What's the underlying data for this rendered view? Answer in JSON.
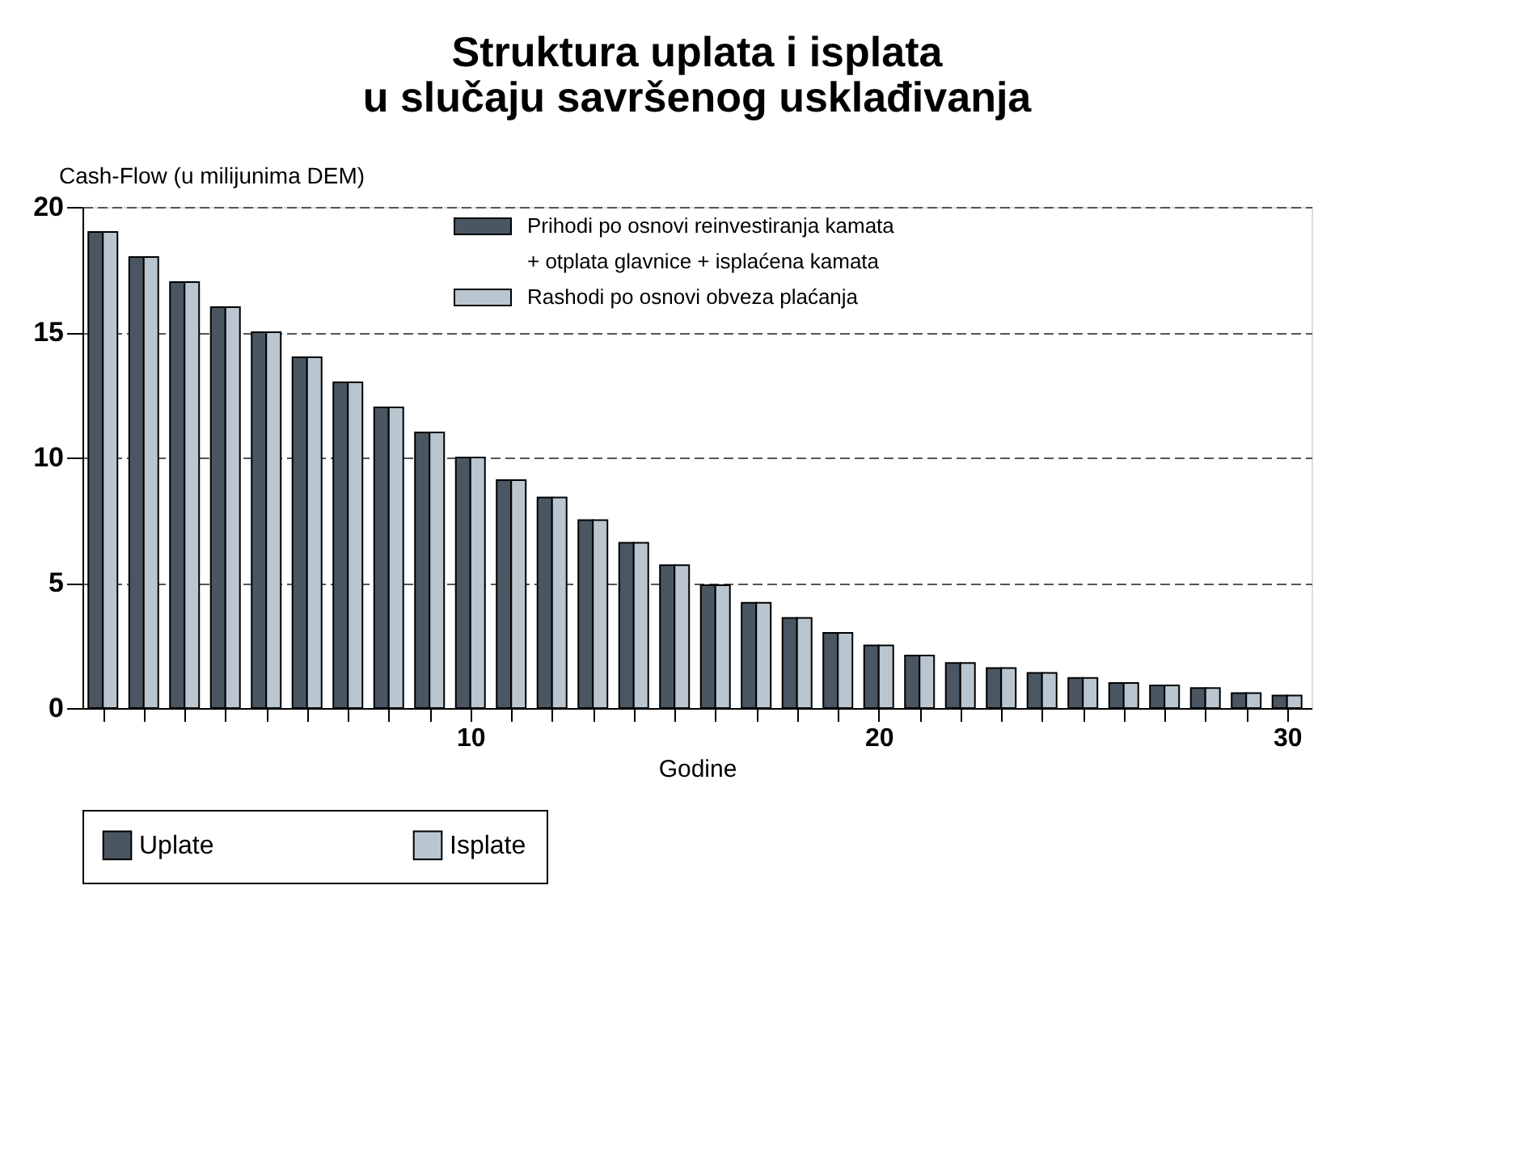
{
  "chart_data": {
    "type": "bar",
    "title": "Struktura uplata i isplata\nu slučaju savršenog usklađivanja",
    "xlabel": "Godine",
    "ylabel": "Cash-Flow (u milijunima DEM)",
    "x": [
      1,
      2,
      3,
      4,
      5,
      6,
      7,
      8,
      9,
      10,
      11,
      12,
      13,
      14,
      15,
      16,
      17,
      18,
      19,
      20,
      21,
      22,
      23,
      24,
      25,
      26,
      27,
      28,
      29,
      30
    ],
    "series": [
      {
        "name": "Uplate",
        "color": "#4a5662",
        "values": [
          19,
          18,
          17,
          16,
          15,
          14,
          13,
          12,
          11,
          10,
          9.1,
          8.4,
          7.5,
          6.6,
          5.7,
          4.9,
          4.2,
          3.6,
          3.0,
          2.5,
          2.1,
          1.8,
          1.6,
          1.4,
          1.2,
          1.0,
          0.9,
          0.8,
          0.6,
          0.5
        ]
      },
      {
        "name": "Isplate",
        "color": "#b9c6cf",
        "values": [
          19,
          18,
          17,
          16,
          15,
          14,
          13,
          12,
          11,
          10,
          9.1,
          8.4,
          7.5,
          6.6,
          5.7,
          4.9,
          4.2,
          3.6,
          3.0,
          2.5,
          2.1,
          1.8,
          1.6,
          1.4,
          1.2,
          1.0,
          0.9,
          0.8,
          0.6,
          0.5
        ]
      }
    ],
    "annotations": [
      "Prihodi po osnovi reinvestiranja kamata\n+ otplata glavnice + isplaćena kamata",
      "Rashodi po osnovi obveza plaćanja"
    ],
    "xlim": [
      0.5,
      30.6
    ],
    "xticks": [
      {
        "value": 1,
        "label": null
      },
      {
        "value": 2,
        "label": null
      },
      {
        "value": 3,
        "label": null
      },
      {
        "value": 4,
        "label": null
      },
      {
        "value": 5,
        "label": null
      },
      {
        "value": 6,
        "label": null
      },
      {
        "value": 7,
        "label": null
      },
      {
        "value": 8,
        "label": null
      },
      {
        "value": 9,
        "label": null
      },
      10,
      {
        "value": 11,
        "label": null
      },
      {
        "value": 12,
        "label": null
      },
      {
        "value": 13,
        "label": null
      },
      {
        "value": 14,
        "label": null
      },
      {
        "value": 15,
        "label": null
      },
      {
        "value": 16,
        "label": null
      },
      {
        "value": 17,
        "label": null
      },
      {
        "value": 18,
        "label": null
      },
      {
        "value": 19,
        "label": null
      },
      20,
      {
        "value": 21,
        "label": null
      },
      {
        "value": 22,
        "label": null
      },
      {
        "value": 23,
        "label": null
      },
      {
        "value": 24,
        "label": null
      },
      {
        "value": 25,
        "label": null
      },
      {
        "value": 26,
        "label": null
      },
      {
        "value": 27,
        "label": null
      },
      {
        "value": 28,
        "label": null
      },
      {
        "value": 29,
        "label": null
      },
      30
    ],
    "ylim": [
      0,
      20
    ],
    "yticks": [
      0,
      5,
      10,
      15,
      20
    ],
    "grid": "y",
    "legend": "bottom"
  }
}
